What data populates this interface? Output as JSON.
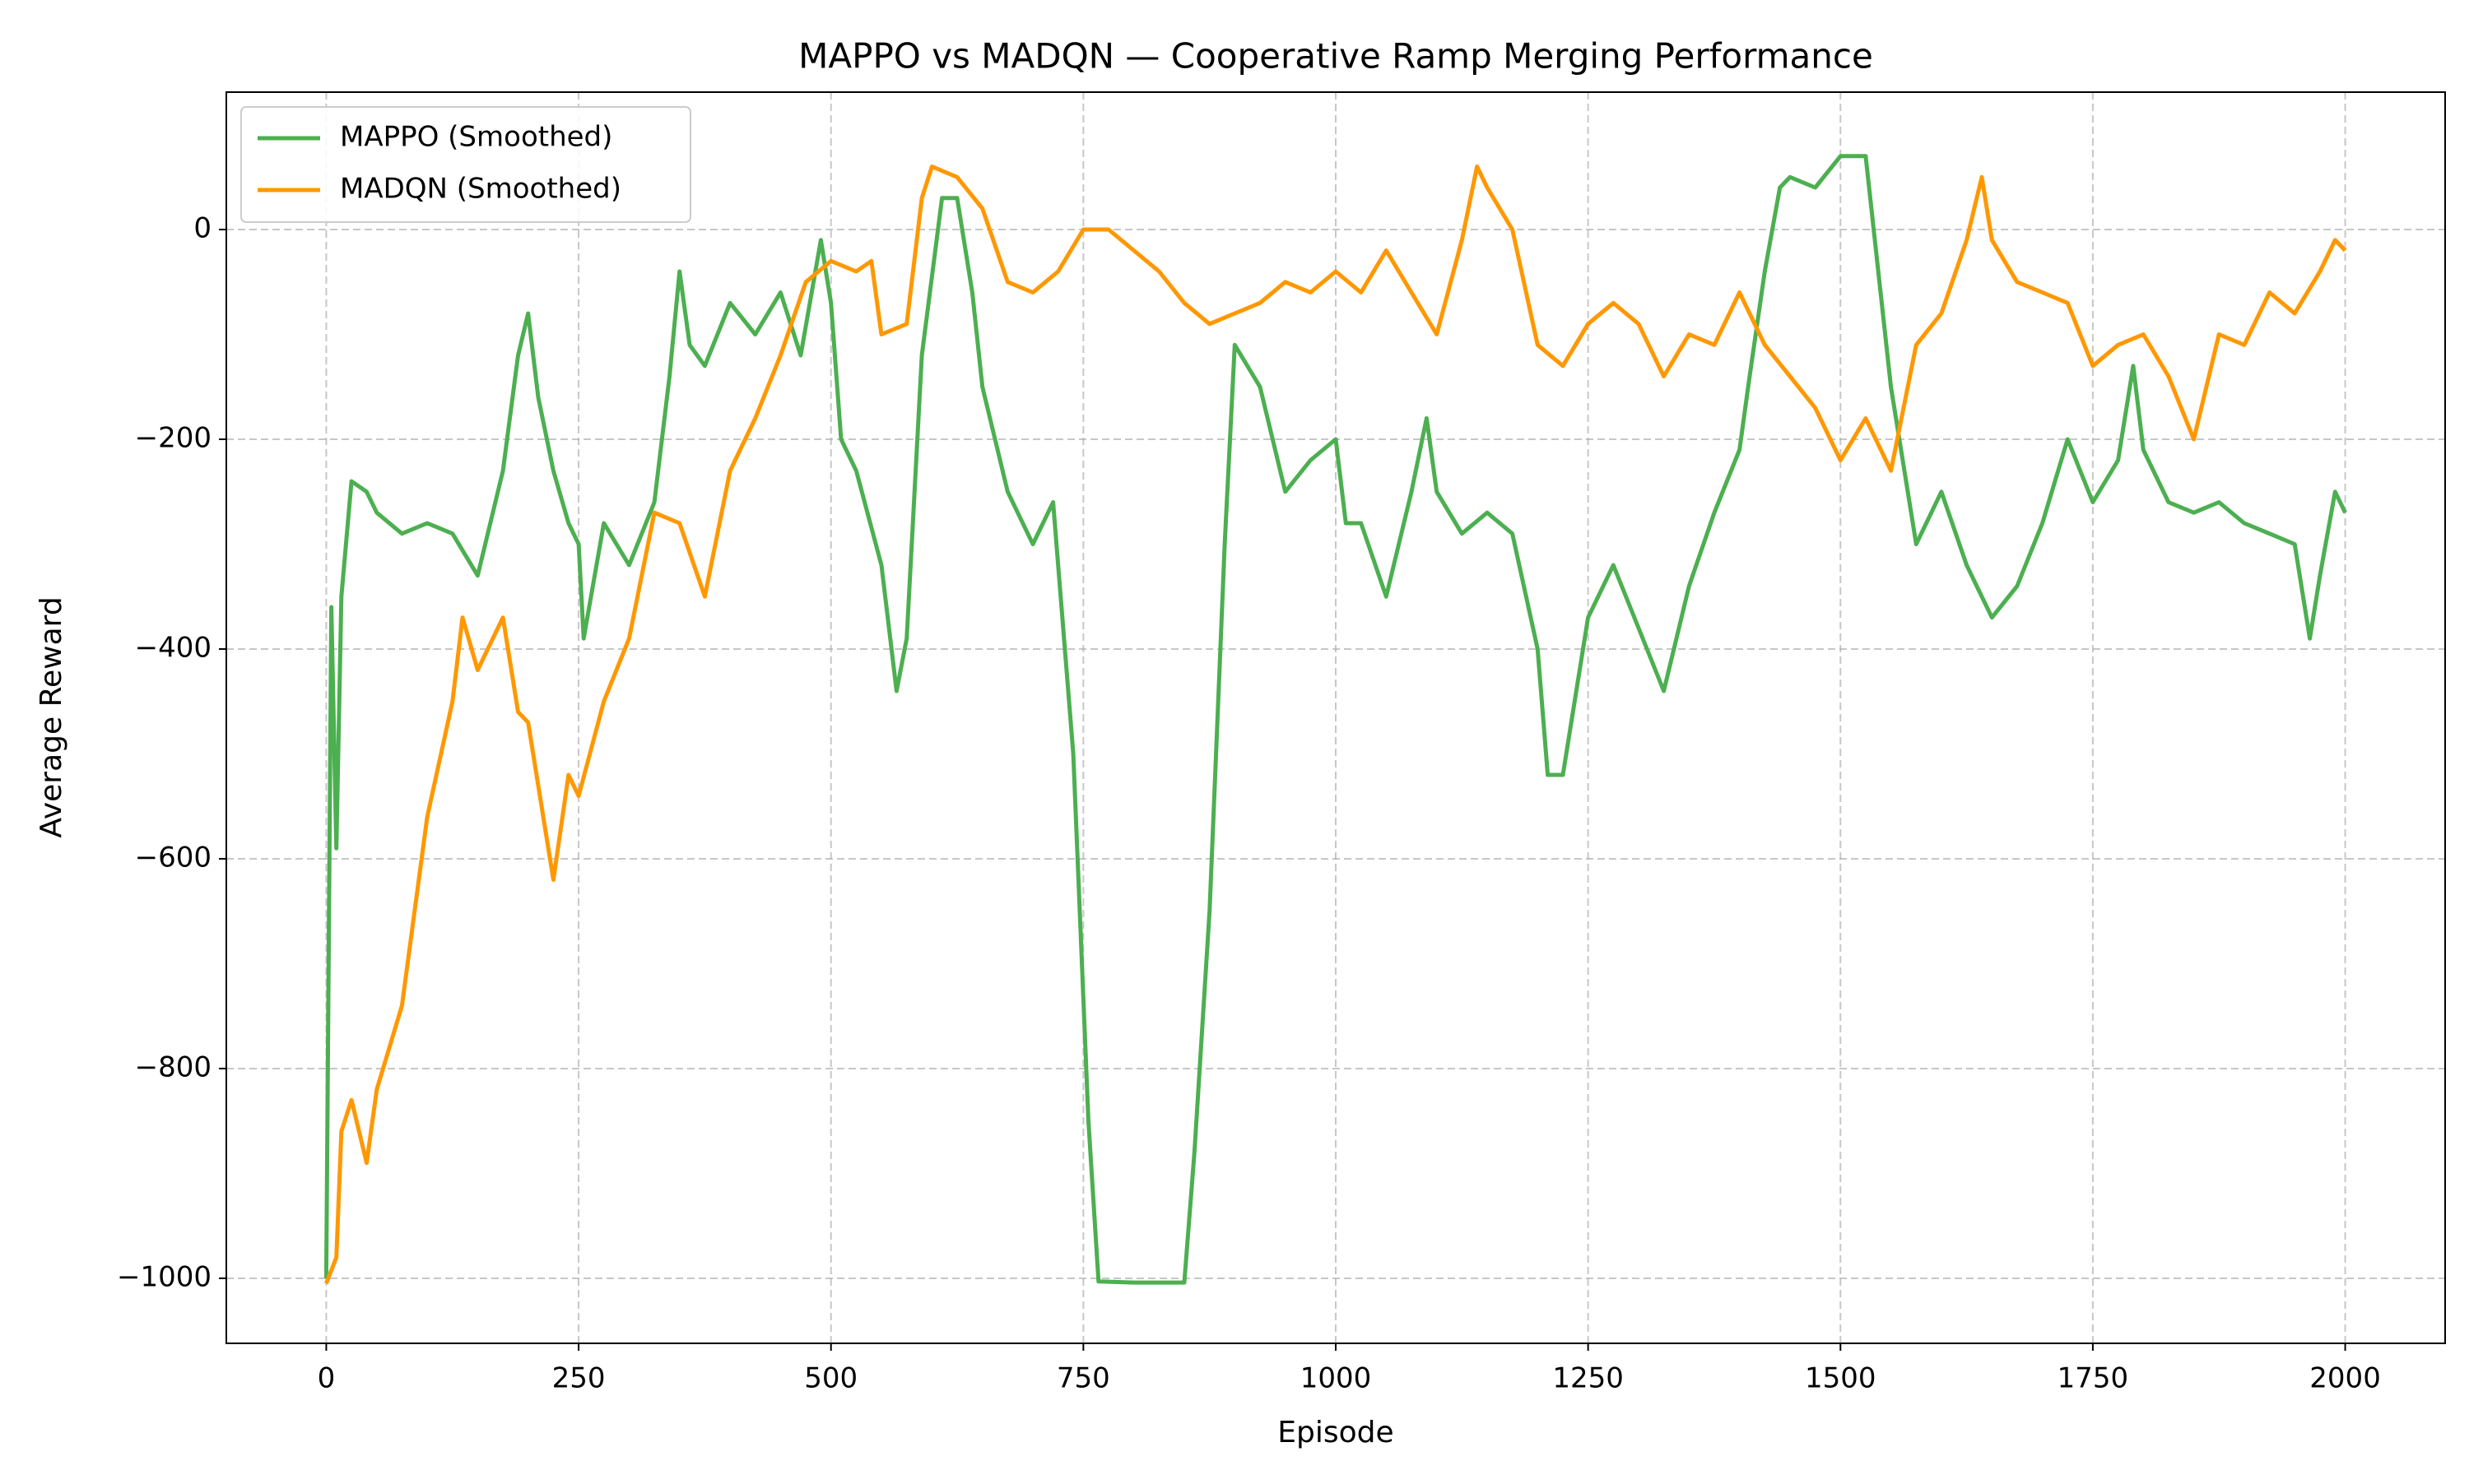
{
  "chart_data": {
    "type": "line",
    "title": "MAPPO vs MADQN — Cooperative Ramp Merging Performance",
    "xlabel": "Episode",
    "ylabel": "Average Reward",
    "xlim": [
      -99,
      2099
    ],
    "ylim": [
      -1062,
      131
    ],
    "xticks": [
      0,
      250,
      500,
      750,
      1000,
      1250,
      1500,
      1750,
      2000
    ],
    "yticks": [
      {
        "value": -1000,
        "label": "−1000"
      },
      {
        "value": -800,
        "label": "−800"
      },
      {
        "value": -600,
        "label": "−600"
      },
      {
        "value": -400,
        "label": "−400"
      },
      {
        "value": -200,
        "label": "−200"
      },
      0
    ],
    "grid": true,
    "legend": "upper left",
    "series": [
      {
        "name": "MAPPO (Smoothed)",
        "color": "#4caf50",
        "x": [
          0,
          5,
          10,
          15,
          25,
          40,
          50,
          75,
          100,
          125,
          150,
          175,
          190,
          200,
          210,
          225,
          240,
          250,
          255,
          275,
          300,
          325,
          340,
          350,
          360,
          375,
          400,
          425,
          450,
          470,
          490,
          500,
          510,
          525,
          550,
          565,
          575,
          590,
          610,
          625,
          640,
          650,
          675,
          700,
          720,
          740,
          755,
          765,
          800,
          850,
          860,
          875,
          890,
          900,
          925,
          950,
          975,
          1000,
          1010,
          1025,
          1050,
          1075,
          1090,
          1100,
          1125,
          1150,
          1175,
          1200,
          1210,
          1225,
          1250,
          1275,
          1300,
          1325,
          1350,
          1375,
          1400,
          1410,
          1425,
          1440,
          1450,
          1475,
          1500,
          1525,
          1550,
          1575,
          1600,
          1625,
          1650,
          1675,
          1700,
          1725,
          1750,
          1775,
          1790,
          1800,
          1825,
          1850,
          1875,
          1900,
          1925,
          1950,
          1965,
          1975,
          1990,
          2000
        ],
        "values": [
          -1000,
          -360,
          -590,
          -350,
          -240,
          -250,
          -270,
          -290,
          -280,
          -290,
          -330,
          -230,
          -120,
          -80,
          -160,
          -230,
          -280,
          -300,
          -390,
          -280,
          -320,
          -260,
          -140,
          -40,
          -110,
          -130,
          -70,
          -100,
          -60,
          -120,
          -10,
          -70,
          -200,
          -230,
          -320,
          -440,
          -390,
          -120,
          30,
          30,
          -60,
          -150,
          -250,
          -300,
          -260,
          -500,
          -850,
          -1003,
          -1004,
          -1004,
          -880,
          -650,
          -300,
          -110,
          -150,
          -250,
          -220,
          -200,
          -280,
          -280,
          -350,
          -250,
          -180,
          -250,
          -290,
          -270,
          -290,
          -400,
          -520,
          -520,
          -370,
          -320,
          -380,
          -440,
          -340,
          -270,
          -210,
          -140,
          -40,
          40,
          50,
          40,
          70,
          70,
          -150,
          -300,
          -250,
          -320,
          -370,
          -340,
          -280,
          -200,
          -260,
          -220,
          -130,
          -210,
          -260,
          -270,
          -260,
          -280,
          -290,
          -300,
          -390,
          -330,
          -250,
          -270
        ]
      },
      {
        "name": "MADQN (Smoothed)",
        "color": "#ff9800",
        "x": [
          0,
          10,
          15,
          25,
          40,
          50,
          75,
          100,
          125,
          135,
          150,
          175,
          190,
          200,
          215,
          225,
          240,
          250,
          275,
          300,
          325,
          350,
          375,
          400,
          425,
          450,
          475,
          500,
          525,
          540,
          550,
          575,
          590,
          600,
          625,
          650,
          675,
          700,
          725,
          750,
          775,
          800,
          825,
          850,
          875,
          900,
          925,
          950,
          975,
          1000,
          1025,
          1050,
          1075,
          1100,
          1125,
          1140,
          1150,
          1175,
          1200,
          1225,
          1250,
          1275,
          1300,
          1325,
          1350,
          1375,
          1400,
          1425,
          1450,
          1475,
          1500,
          1525,
          1550,
          1575,
          1600,
          1625,
          1640,
          1650,
          1675,
          1700,
          1725,
          1750,
          1775,
          1800,
          1825,
          1850,
          1875,
          1900,
          1925,
          1950,
          1975,
          1990,
          2000
        ],
        "values": [
          -1005,
          -980,
          -860,
          -830,
          -890,
          -820,
          -740,
          -560,
          -450,
          -370,
          -420,
          -370,
          -460,
          -470,
          -560,
          -620,
          -520,
          -540,
          -450,
          -390,
          -270,
          -280,
          -350,
          -230,
          -180,
          -120,
          -50,
          -30,
          -40,
          -30,
          -100,
          -90,
          30,
          60,
          50,
          20,
          -50,
          -60,
          -40,
          0,
          0,
          -20,
          -40,
          -70,
          -90,
          -80,
          -70,
          -50,
          -60,
          -40,
          -60,
          -20,
          -60,
          -100,
          -10,
          60,
          40,
          0,
          -110,
          -130,
          -90,
          -70,
          -90,
          -140,
          -100,
          -110,
          -60,
          -110,
          -140,
          -170,
          -220,
          -180,
          -230,
          -110,
          -80,
          -10,
          50,
          -10,
          -50,
          -60,
          -70,
          -130,
          -110,
          -100,
          -140,
          -200,
          -100,
          -110,
          -60,
          -80,
          -40,
          -10,
          -20
        ]
      }
    ]
  }
}
